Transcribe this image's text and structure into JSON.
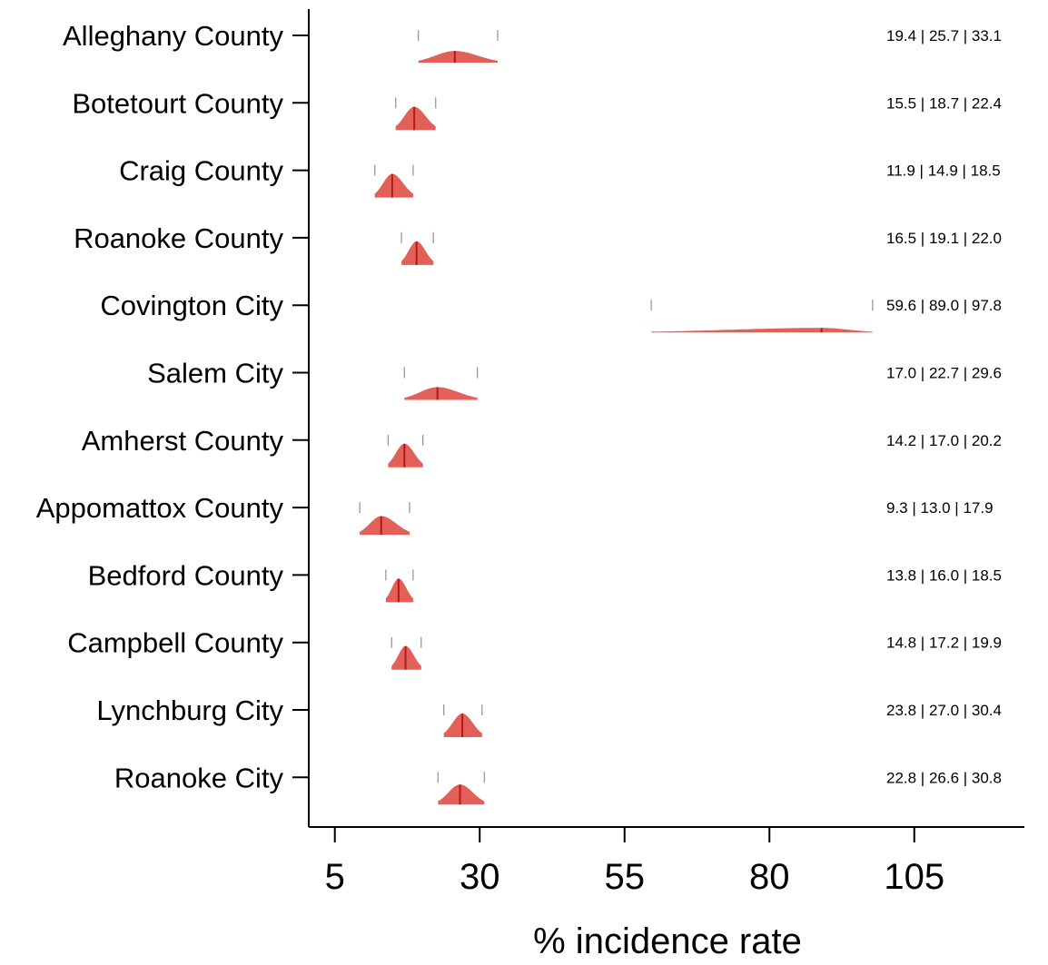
{
  "chart_data": {
    "type": "ridgeline",
    "xlabel": "% incidence rate",
    "xlim": [
      0.5,
      124
    ],
    "xticks": [
      5,
      30,
      55,
      80,
      105
    ],
    "tick_labels": [
      "5",
      "30",
      "55",
      "80",
      "105"
    ],
    "colors": {
      "density_fill": "#e0534a",
      "median_line": "#b51a12",
      "ci_tick": "#999999",
      "axis": "#000000"
    },
    "rows": [
      {
        "name": "Alleghany County",
        "low": 19.4,
        "median": 25.7,
        "high": 33.1,
        "label": "19.4 | 25.7 | 33.1"
      },
      {
        "name": "Botetourt County",
        "low": 15.5,
        "median": 18.7,
        "high": 22.4,
        "label": "15.5 | 18.7 | 22.4"
      },
      {
        "name": "Craig County",
        "low": 11.9,
        "median": 14.9,
        "high": 18.5,
        "label": "11.9 | 14.9 | 18.5"
      },
      {
        "name": "Roanoke County",
        "low": 16.5,
        "median": 19.1,
        "high": 22.0,
        "label": "16.5 | 19.1 | 22.0"
      },
      {
        "name": "Covington City",
        "low": 59.6,
        "median": 89.0,
        "high": 97.8,
        "label": "59.6 | 89.0 | 97.8"
      },
      {
        "name": "Salem City",
        "low": 17.0,
        "median": 22.7,
        "high": 29.6,
        "label": "17.0 | 22.7 | 29.6"
      },
      {
        "name": "Amherst County",
        "low": 14.2,
        "median": 17.0,
        "high": 20.2,
        "label": "14.2 | 17.0 | 20.2"
      },
      {
        "name": "Appomattox County",
        "low": 9.3,
        "median": 13.0,
        "high": 17.9,
        "label": "9.3 | 13.0 | 17.9"
      },
      {
        "name": "Bedford County",
        "low": 13.8,
        "median": 16.0,
        "high": 18.5,
        "label": "13.8 | 16.0 | 18.5"
      },
      {
        "name": "Campbell County",
        "low": 14.8,
        "median": 17.2,
        "high": 19.9,
        "label": "14.8 | 17.2 | 19.9"
      },
      {
        "name": "Lynchburg City",
        "low": 23.8,
        "median": 27.0,
        "high": 30.4,
        "label": "23.8 | 27.0 | 30.4"
      },
      {
        "name": "Roanoke City",
        "low": 22.8,
        "median": 26.6,
        "high": 30.8,
        "label": "22.8 | 26.6 | 30.8"
      }
    ]
  }
}
